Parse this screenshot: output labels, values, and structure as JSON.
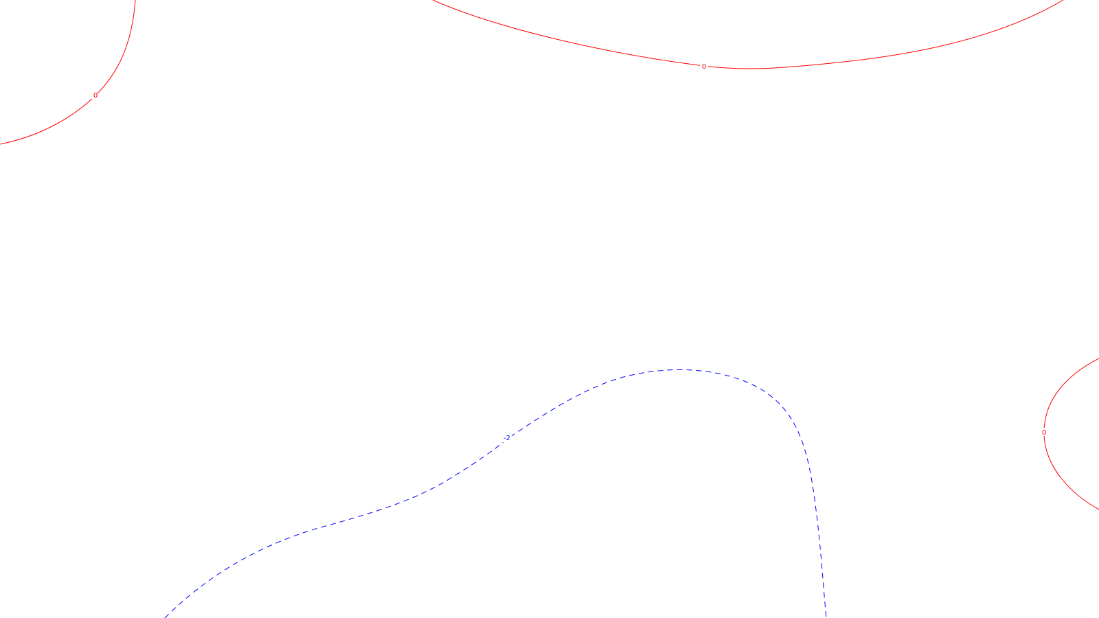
{
  "contours": [
    {
      "id": "zero-top-left",
      "level_label": "0",
      "color": "#ff0000",
      "style": "solid"
    },
    {
      "id": "zero-top-center",
      "level_label": "0",
      "color": "#ff0000",
      "style": "solid"
    },
    {
      "id": "zero-right",
      "level_label": "0",
      "color": "#ff0000",
      "style": "solid"
    },
    {
      "id": "neg-two-bottom",
      "level_label": "-2",
      "color": "#0000ff",
      "style": "dashed"
    }
  ]
}
